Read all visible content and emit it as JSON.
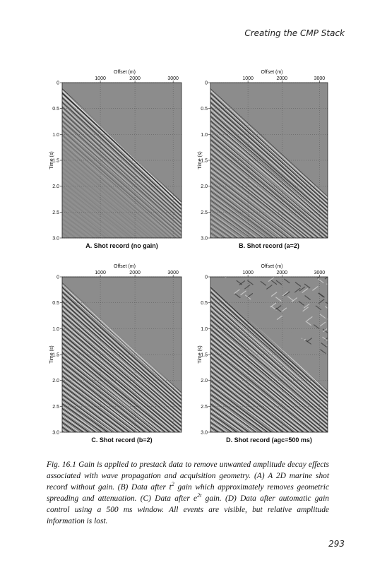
{
  "header": {
    "title": "Creating the CMP Stack"
  },
  "panels": [
    {
      "title": "A. Shot record (no gain)",
      "xlabel": "Offset (m)",
      "ylabel": "Time (s)",
      "xticks": [
        "1000",
        "2000",
        "3000"
      ],
      "yticks": [
        "0",
        "0.5",
        "1.0",
        "1.5",
        "2.0",
        "2.5",
        "3.0"
      ]
    },
    {
      "title": "B. Shot record (a=2)",
      "xlabel": "Offset (m)",
      "ylabel": "Time (s)",
      "xticks": [
        "1000",
        "2000",
        "3000"
      ],
      "yticks": [
        "0",
        "0.5",
        "1.0",
        "1.5",
        "2.0",
        "2.5",
        "3.0"
      ]
    },
    {
      "title": "C. Shot record (b=2)",
      "xlabel": "Offset (m)",
      "ylabel": "Time (s)",
      "xticks": [
        "1000",
        "2000",
        "3000"
      ],
      "yticks": [
        "0",
        "0.5",
        "1.0",
        "1.5",
        "2.0",
        "2.5",
        "3.0"
      ]
    },
    {
      "title": "D. Shot record (agc=500 ms)",
      "xlabel": "Offset (m)",
      "ylabel": "Time (s)",
      "xticks": [
        "1000",
        "2000",
        "3000"
      ],
      "yticks": [
        "0",
        "0.5",
        "1.0",
        "1.5",
        "2.0",
        "2.5",
        "3.0"
      ]
    }
  ],
  "caption": {
    "parts": [
      "Fig. 16.1 Gain is applied to prestack data to remove unwanted amplitude decay effects associated with wave propagation and acquisition geometry. (A) A 2D marine shot record without gain. (B) Data after t",
      "2",
      " gain which approximately removes geometric spreading and attenuation. (C) Data after e",
      "2t",
      " gain. (D) Data after automatic gain control using a 500 ms window. All events are visible, but relative amplitude information is lost."
    ]
  },
  "footer": {
    "page": "293"
  }
}
